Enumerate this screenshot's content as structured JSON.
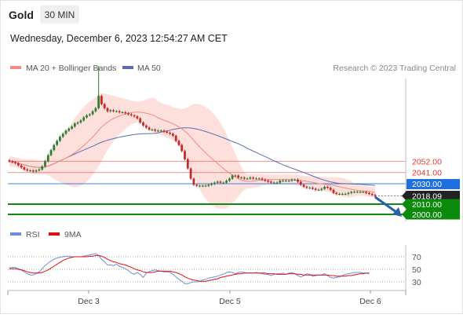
{
  "header": {
    "symbol": "Gold",
    "interval": "30 MIN",
    "datetime": "Wednesday, December 6, 2023 12:54:27 AM CET"
  },
  "legend": {
    "ma20_label": "MA 20 + Bollinger Bands",
    "ma50_label": "MA 50",
    "copyright": "Research © 2023 Trading Central",
    "rsi_label": "RSI",
    "rsi_ma_label": "9MA"
  },
  "colors": {
    "bull": "#2e7d32",
    "bear": "#c62828",
    "ma20": "#f28b82",
    "ma50": "#5b6cb5",
    "bollinger_fill": "#fde0dc",
    "resistance": "#e53935",
    "pivot": "#1e6fe0",
    "support": "#0b8a0b",
    "last_price_bg": "#222222",
    "arrow": "#2860a8",
    "rsi": "#6a8fd8",
    "rsi_ma": "#e01010"
  },
  "chart_data": [
    {
      "type": "candlestick",
      "title": "Gold 30 MIN",
      "x_tick_labels": [
        "Dec 3",
        "Dec 5",
        "Dec 6"
      ],
      "price_range_approx": [
        1990,
        2150
      ],
      "levels": [
        {
          "label": "2052.00",
          "value": 2052.0,
          "kind": "resistance"
        },
        {
          "label": "2041.00",
          "value": 2041.0,
          "kind": "resistance"
        },
        {
          "label": "2030.00",
          "value": 2030.0,
          "kind": "pivot"
        },
        {
          "label": "2018.09",
          "value": 2018.09,
          "kind": "last"
        },
        {
          "label": "2010.00",
          "value": 2010.0,
          "kind": "support"
        },
        {
          "label": "2000.00",
          "value": 2000.0,
          "kind": "support"
        }
      ],
      "close_series": [
        2052,
        2051,
        2050,
        2048,
        2046,
        2044,
        2043,
        2043,
        2042,
        2043,
        2044,
        2047,
        2052,
        2058,
        2063,
        2068,
        2072,
        2076,
        2079,
        2082,
        2084,
        2086,
        2089,
        2090,
        2092,
        2095,
        2097,
        2098,
        2101,
        2104,
        2116,
        2108,
        2104,
        2101,
        2102,
        2101,
        2101,
        2100,
        2100,
        2099,
        2098,
        2097,
        2096,
        2094,
        2090,
        2087,
        2085,
        2083,
        2083,
        2082,
        2082,
        2082,
        2081,
        2080,
        2079,
        2077,
        2072,
        2068,
        2062,
        2054,
        2045,
        2035,
        2029,
        2028,
        2028,
        2028,
        2028,
        2029,
        2030,
        2031,
        2032,
        2031,
        2031,
        2033,
        2035,
        2038,
        2038,
        2036,
        2036,
        2035,
        2035,
        2036,
        2035,
        2035,
        2035,
        2034,
        2033,
        2032,
        2031,
        2031,
        2031,
        2033,
        2033,
        2033,
        2033,
        2034,
        2034,
        2032,
        2029,
        2027,
        2026,
        2026,
        2025,
        2024,
        2024,
        2025,
        2027,
        2026,
        2024,
        2021,
        2020,
        2020,
        2020,
        2020,
        2021,
        2022,
        2022,
        2022,
        2022,
        2022,
        2021,
        2020,
        2019,
        2018
      ],
      "ma20_bollinger": "MA 20 with upper and lower Bollinger bands",
      "ma50": "MA 50"
    },
    {
      "type": "line",
      "title": "RSI",
      "series": [
        {
          "name": "RSI",
          "values": [
            52,
            53,
            53,
            51,
            49,
            46,
            43,
            41,
            41,
            43,
            46,
            51,
            56,
            60,
            63,
            66,
            68,
            69,
            70,
            71,
            71,
            70,
            70,
            70,
            70,
            71,
            72,
            73,
            74,
            75,
            72,
            66,
            62,
            57,
            57,
            56,
            58,
            55,
            53,
            51,
            48,
            44,
            42,
            45,
            42,
            37,
            44,
            46,
            48,
            49,
            48,
            47,
            46,
            46,
            45,
            42,
            38,
            34,
            31,
            27,
            27,
            29,
            30,
            30,
            31,
            33,
            34,
            36,
            37,
            38,
            39,
            41,
            42,
            45,
            46,
            45,
            43,
            45,
            46,
            45,
            44,
            44,
            44,
            45,
            44,
            43,
            42,
            42,
            40,
            42,
            43,
            43,
            44,
            42,
            44,
            45,
            43,
            40,
            38,
            40,
            43,
            42,
            39,
            40,
            41,
            41,
            43,
            40,
            37,
            36,
            37,
            38,
            40,
            42,
            43,
            44,
            45,
            45,
            45,
            44,
            44,
            43
          ]
        },
        {
          "name": "9MA",
          "values": [
            51,
            51,
            51,
            50,
            49,
            48,
            46,
            45,
            44,
            44,
            44,
            45,
            47,
            49,
            52,
            55,
            58,
            61,
            64,
            66,
            68,
            69,
            70,
            70,
            70,
            70,
            70,
            71,
            71,
            72,
            72,
            71,
            69,
            66,
            64,
            62,
            61,
            59,
            58,
            57,
            55,
            53,
            51,
            49,
            48,
            46,
            45,
            45,
            45,
            46,
            47,
            47,
            47,
            47,
            47,
            46,
            45,
            43,
            41,
            38,
            36,
            34,
            33,
            32,
            31,
            31,
            31,
            32,
            33,
            34,
            35,
            37,
            38,
            39,
            40,
            41,
            42,
            43,
            43,
            44,
            44,
            44,
            44,
            44,
            44,
            44,
            44,
            43,
            43,
            43,
            42,
            42,
            42,
            42,
            43,
            43,
            43,
            42,
            42,
            41,
            41,
            41,
            41,
            41,
            41,
            41,
            41,
            41,
            40,
            40,
            39,
            39,
            39,
            39,
            40,
            40,
            41,
            42,
            43,
            43,
            44,
            44
          ]
        }
      ],
      "y_ticks": [
        "70",
        "50",
        "30"
      ],
      "ylim": [
        15,
        85
      ],
      "x_tick_labels": [
        "Dec 3",
        "Dec 5",
        "Dec 6"
      ]
    }
  ]
}
